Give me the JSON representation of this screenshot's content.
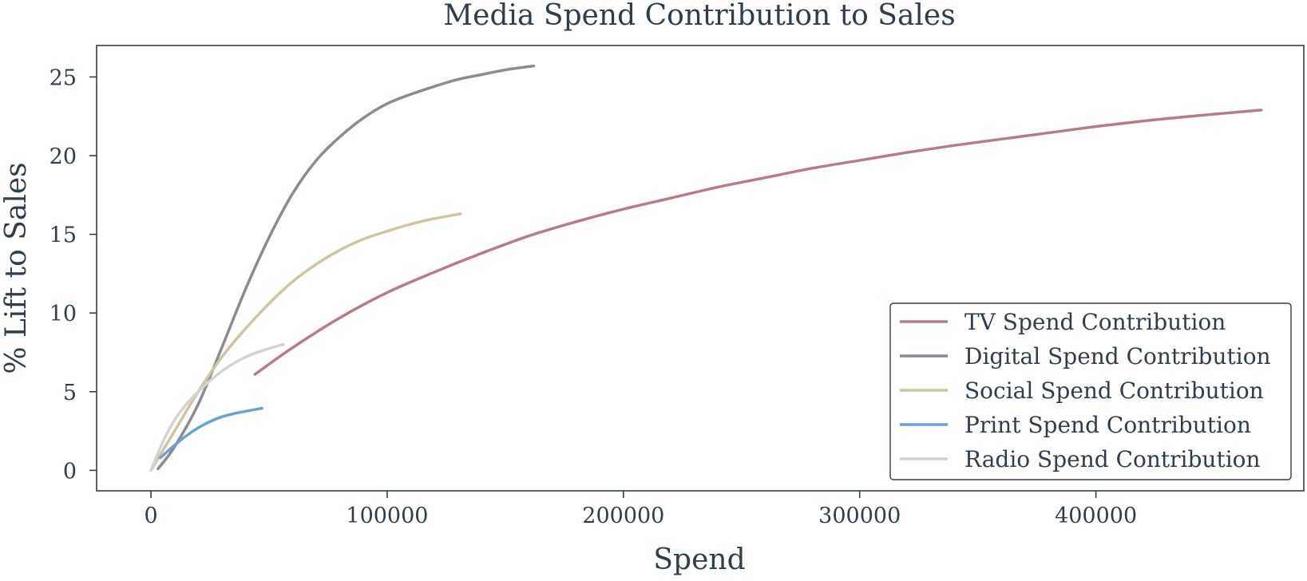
{
  "chart_data": {
    "type": "line",
    "title": "Media Spend Contribution to Sales",
    "xlabel": "Spend",
    "ylabel": "% Lift to Sales",
    "xlim": [
      -23000,
      488000
    ],
    "ylim": [
      -1.3,
      27.0
    ],
    "x_ticks": [
      0,
      100000,
      200000,
      300000,
      400000
    ],
    "x_tick_labels": [
      "0",
      "100000",
      "200000",
      "300000",
      "400000"
    ],
    "y_ticks": [
      0,
      5,
      10,
      15,
      20,
      25
    ],
    "y_tick_labels": [
      "0",
      "5",
      "10",
      "15",
      "20",
      "25"
    ],
    "grid": false,
    "legend_position": "lower right",
    "series": [
      {
        "name": "TV Spend Contribution",
        "color": "#b87c86",
        "x": [
          44000,
          60000,
          80000,
          100000,
          120000,
          140000,
          160000,
          180000,
          200000,
          220000,
          240000,
          260000,
          280000,
          300000,
          320000,
          340000,
          360000,
          380000,
          400000,
          420000,
          440000,
          470000
        ],
        "y": [
          6.1,
          7.8,
          9.7,
          11.3,
          12.6,
          13.8,
          14.9,
          15.8,
          16.6,
          17.3,
          18.0,
          18.6,
          19.2,
          19.7,
          20.2,
          20.65,
          21.05,
          21.45,
          21.85,
          22.2,
          22.5,
          22.9
        ]
      },
      {
        "name": "Digital Spend Contribution",
        "color": "#888c93",
        "x": [
          3000,
          10000,
          20000,
          30000,
          40000,
          50000,
          60000,
          70000,
          80000,
          90000,
          100000,
          110000,
          120000,
          130000,
          140000,
          150000,
          162000
        ],
        "y": [
          0.1,
          1.5,
          4.2,
          7.8,
          11.5,
          14.8,
          17.6,
          19.7,
          21.2,
          22.4,
          23.3,
          23.9,
          24.4,
          24.85,
          25.15,
          25.45,
          25.7
        ]
      },
      {
        "name": "Social Spend Contribution",
        "color": "#d1c49e",
        "x": [
          0,
          10000,
          20000,
          30000,
          40000,
          50000,
          60000,
          70000,
          80000,
          90000,
          100000,
          110000,
          120000,
          131000
        ],
        "y": [
          0,
          2.5,
          5.0,
          7.2,
          9.0,
          10.6,
          12.0,
          13.1,
          14.0,
          14.7,
          15.2,
          15.65,
          16.0,
          16.3
        ]
      },
      {
        "name": "Print Spend Contribution",
        "color": "#6aa3cf",
        "x": [
          4000,
          10000,
          15000,
          20000,
          25000,
          30000,
          35000,
          40000,
          47000
        ],
        "y": [
          0.8,
          1.6,
          2.2,
          2.7,
          3.1,
          3.4,
          3.6,
          3.75,
          3.95
        ]
      },
      {
        "name": "Radio Spend Contribution",
        "color": "#d3d3d5",
        "x": [
          0,
          5000,
          10000,
          15000,
          20000,
          25000,
          30000,
          35000,
          40000,
          45000,
          50000,
          56000
        ],
        "y": [
          0,
          1.8,
          3.2,
          4.2,
          5.0,
          5.7,
          6.3,
          6.8,
          7.2,
          7.5,
          7.75,
          8.0
        ]
      }
    ]
  }
}
